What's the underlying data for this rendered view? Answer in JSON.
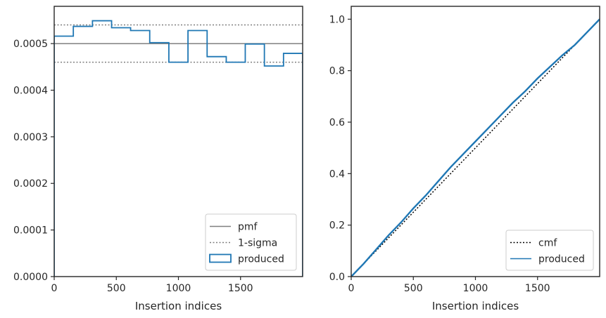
{
  "chart_data": [
    {
      "type": "line",
      "xlabel": "Insertion indices",
      "ylabel": "",
      "xlim": [
        0,
        2000
      ],
      "ylim": [
        0,
        0.00058
      ],
      "xticks": [
        0,
        500,
        1000,
        1500
      ],
      "xtick_labels": [
        "0",
        "500",
        "1000",
        "1500"
      ],
      "yticks": [
        0,
        0.0001,
        0.0002,
        0.0003,
        0.0004,
        0.0005
      ],
      "ytick_labels": [
        "0.0000",
        "0.0001",
        "0.0002",
        "0.0003",
        "0.0004",
        "0.0005"
      ],
      "grid": false,
      "legend_position": "lower-right",
      "series": [
        {
          "name": "pmf",
          "kind": "hline",
          "y": 0.0005,
          "color": "#7f7f7f",
          "style": "solid"
        },
        {
          "name": "1-sigma",
          "kind": "hline",
          "y": [
            0.00046,
            0.00054
          ],
          "color": "#7f7f7f",
          "style": "dotted"
        },
        {
          "name": "produced",
          "kind": "step-histogram",
          "color": "#1f77b4",
          "bin_edges": [
            0,
            154,
            308,
            462,
            615,
            769,
            923,
            1077,
            1231,
            1385,
            1538,
            1692,
            1846,
            2000
          ],
          "values": [
            0.000516,
            0.000537,
            0.000549,
            0.000534,
            0.000528,
            0.000502,
            0.00046,
            0.000528,
            0.000472,
            0.00046,
            0.000499,
            0.000452,
            0.000479
          ]
        }
      ]
    },
    {
      "type": "line",
      "xlabel": "Insertion indices",
      "ylabel": "",
      "xlim": [
        0,
        2000
      ],
      "ylim": [
        0,
        1.05
      ],
      "xticks": [
        0,
        500,
        1000,
        1500
      ],
      "xtick_labels": [
        "0",
        "500",
        "1000",
        "1500"
      ],
      "yticks": [
        0,
        0.2,
        0.4,
        0.6,
        0.8,
        1.0
      ],
      "ytick_labels": [
        "0.0",
        "0.2",
        "0.4",
        "0.6",
        "0.8",
        "1.0"
      ],
      "grid": false,
      "legend_position": "lower-right",
      "series": [
        {
          "name": "cmf",
          "kind": "line",
          "color": "#000000",
          "style": "dotted",
          "x": [
            0,
            2000
          ],
          "y": [
            0,
            1.0
          ]
        },
        {
          "name": "produced",
          "kind": "line",
          "color": "#1f77b4",
          "style": "solid",
          "x": [
            0,
            100,
            200,
            300,
            400,
            500,
            600,
            700,
            800,
            900,
            1000,
            1100,
            1200,
            1300,
            1400,
            1500,
            1600,
            1700,
            1800,
            1900,
            2000
          ],
          "y": [
            0,
            0.05,
            0.105,
            0.16,
            0.21,
            0.265,
            0.315,
            0.37,
            0.425,
            0.475,
            0.525,
            0.575,
            0.625,
            0.675,
            0.72,
            0.77,
            0.815,
            0.86,
            0.9,
            0.95,
            1.0
          ]
        }
      ]
    }
  ]
}
